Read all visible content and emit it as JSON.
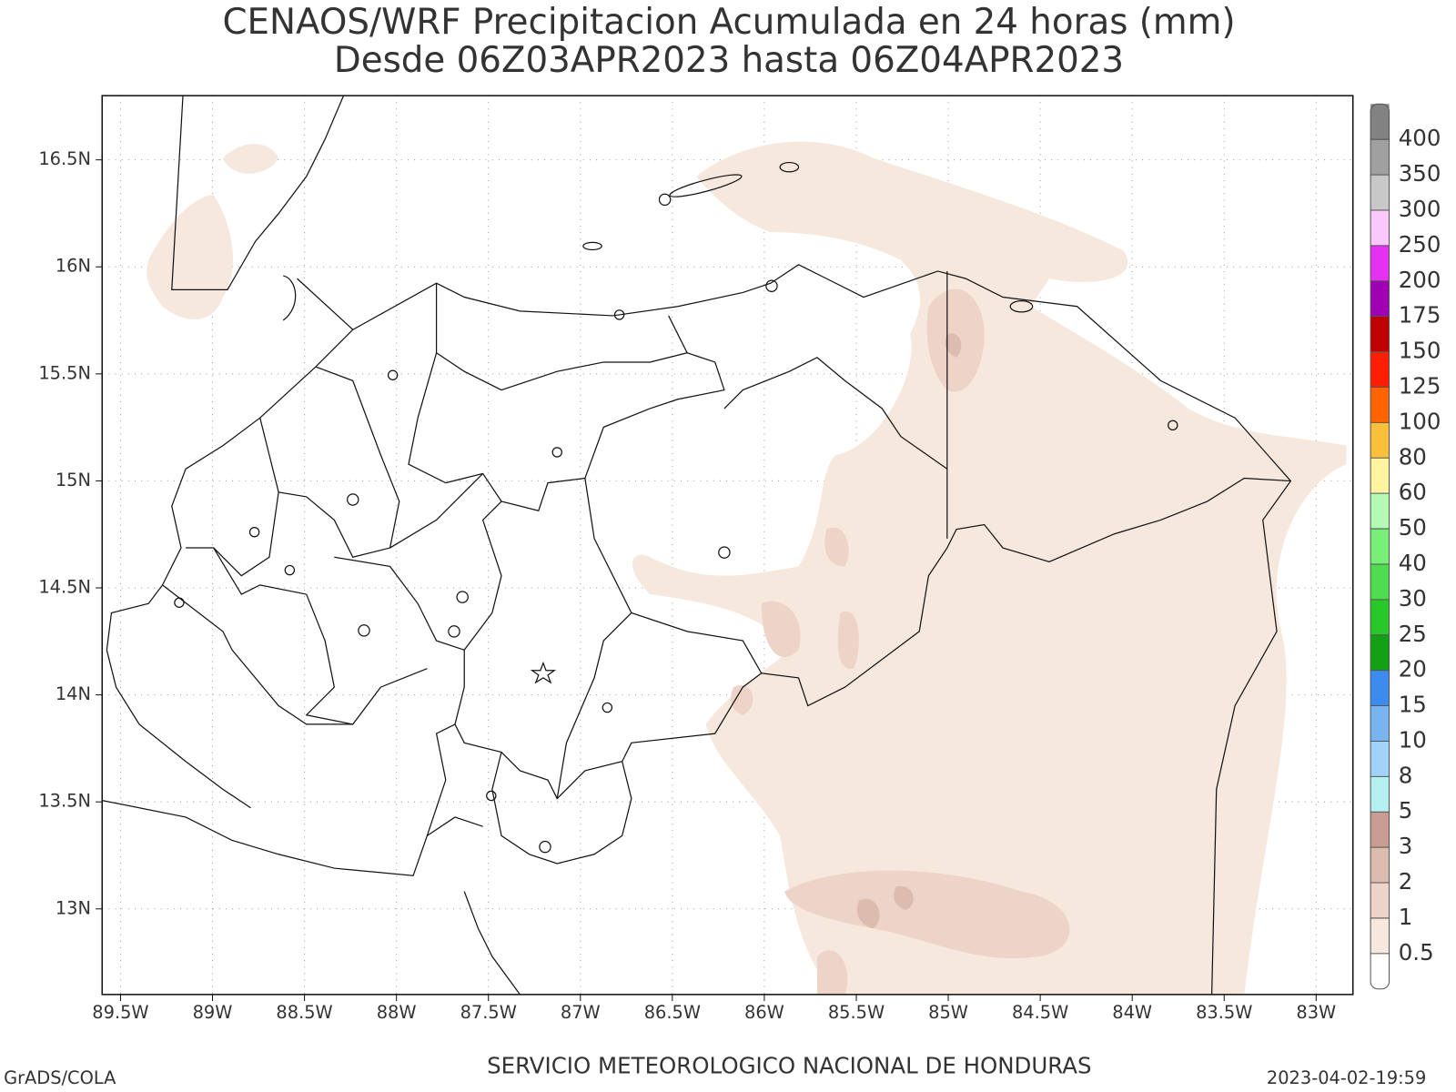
{
  "header": {
    "title": "CENAOS/WRF Precipitacion Acumulada en 24 horas (mm)",
    "subtitle": "Desde 06Z03APR2023 hasta 06Z04APR2023"
  },
  "map": {
    "lonlim": [
      -89.6,
      -82.8
    ],
    "latlim": [
      12.6,
      16.8
    ],
    "grid": true,
    "lon_ticks": [
      {
        "value": -89.5,
        "label": "89.5W"
      },
      {
        "value": -89,
        "label": "89W"
      },
      {
        "value": -88.5,
        "label": "88.5W"
      },
      {
        "value": -88,
        "label": "88W"
      },
      {
        "value": -87.5,
        "label": "87.5W"
      },
      {
        "value": -87,
        "label": "87W"
      },
      {
        "value": -86.5,
        "label": "86.5W"
      },
      {
        "value": -86,
        "label": "86W"
      },
      {
        "value": -85.5,
        "label": "85.5W"
      },
      {
        "value": -85,
        "label": "85W"
      },
      {
        "value": -84.5,
        "label": "84.5W"
      },
      {
        "value": -84,
        "label": "84W"
      },
      {
        "value": -83.5,
        "label": "83.5W"
      },
      {
        "value": -83,
        "label": "83W"
      }
    ],
    "lat_ticks": [
      {
        "value": 13,
        "label": "13N"
      },
      {
        "value": 13.5,
        "label": "13.5N"
      },
      {
        "value": 14,
        "label": "14N"
      },
      {
        "value": 14.5,
        "label": "14.5N"
      },
      {
        "value": 15,
        "label": "15N"
      },
      {
        "value": 15.5,
        "label": "15.5N"
      },
      {
        "value": 16,
        "label": "16N"
      },
      {
        "value": 16.5,
        "label": "16.5N"
      }
    ]
  },
  "colorbar": {
    "levels": [
      0.5,
      1,
      2,
      3,
      5,
      8,
      10,
      15,
      20,
      25,
      30,
      40,
      50,
      60,
      80,
      100,
      125,
      150,
      175,
      200,
      250,
      300,
      350,
      400
    ],
    "colors": [
      "#ffffff",
      "#f7e8de",
      "#eed4c8",
      "#ddbcb0",
      "#c89c92",
      "#b4f0f0",
      "#a0d2fa",
      "#78b4f0",
      "#3c8cf0",
      "#14a014",
      "#28c828",
      "#50dc50",
      "#78f078",
      "#b4fab4",
      "#fff5a0",
      "#fac03c",
      "#ff6400",
      "#ff1e00",
      "#c00000",
      "#a000b4",
      "#e632f0",
      "#fac8fa",
      "#c8c8c8",
      "#a0a0a0",
      "#828282"
    ]
  },
  "footer": {
    "left": "GrADS/COLA",
    "center": "SERVICIO METEOROLOGICO NACIONAL DE HONDURAS",
    "right": "2023-04-02-19:59"
  }
}
